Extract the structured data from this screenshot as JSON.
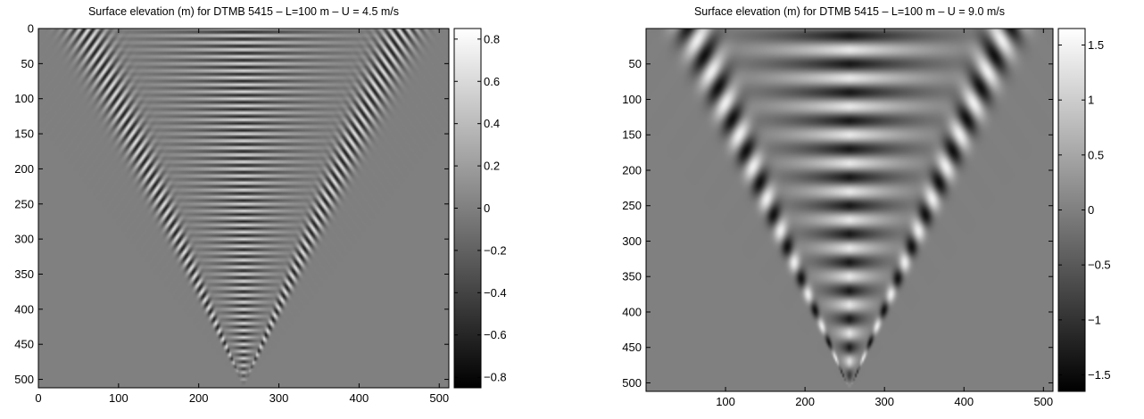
{
  "chart_data": [
    {
      "type": "heatmap",
      "title": "Surface elevation (m) for DTMB 5415 – L=100 m – U = 4.5 m/s",
      "xlabel": "",
      "ylabel": "",
      "xlim": [
        0,
        512
      ],
      "ylim": [
        512,
        0
      ],
      "xticks": [
        "0",
        "100",
        "200",
        "300",
        "400",
        "500"
      ],
      "yticks": [
        "0",
        "50",
        "100",
        "150",
        "200",
        "250",
        "300",
        "350",
        "400",
        "450",
        "500"
      ],
      "colormap": "gray",
      "colorbar": {
        "clim": [
          -0.85,
          0.85
        ],
        "ticks": [
          "0.8",
          "0.6",
          "0.4",
          "0.2",
          "0",
          "−0.2",
          "−0.4",
          "−0.6",
          "−0.8"
        ]
      },
      "pattern": {
        "description": "Kelvin ship wake, apex at bottom",
        "apex": [
          256,
          510
        ],
        "wavelength_px": 10,
        "max_amplitude": 0.8
      }
    },
    {
      "type": "heatmap",
      "title": "Surface elevation (m) for DTMB 5415 – L=100 m – U = 9.0 m/s",
      "xlabel": "",
      "ylabel": "",
      "xlim": [
        0,
        512
      ],
      "ylim": [
        512,
        0
      ],
      "xticks": [
        "100",
        "200",
        "300",
        "400",
        "500"
      ],
      "yticks": [
        "50",
        "100",
        "150",
        "200",
        "250",
        "300",
        "350",
        "400",
        "450",
        "500"
      ],
      "colormap": "gray",
      "colorbar": {
        "clim": [
          -1.65,
          1.65
        ],
        "ticks": [
          "1.5",
          "1",
          "0.5",
          "0",
          "−0.5",
          "−1",
          "−1.5"
        ]
      },
      "pattern": {
        "description": "Kelvin ship wake, apex at bottom",
        "apex": [
          256,
          510
        ],
        "wavelength_px": 40,
        "max_amplitude": 1.6
      }
    }
  ]
}
